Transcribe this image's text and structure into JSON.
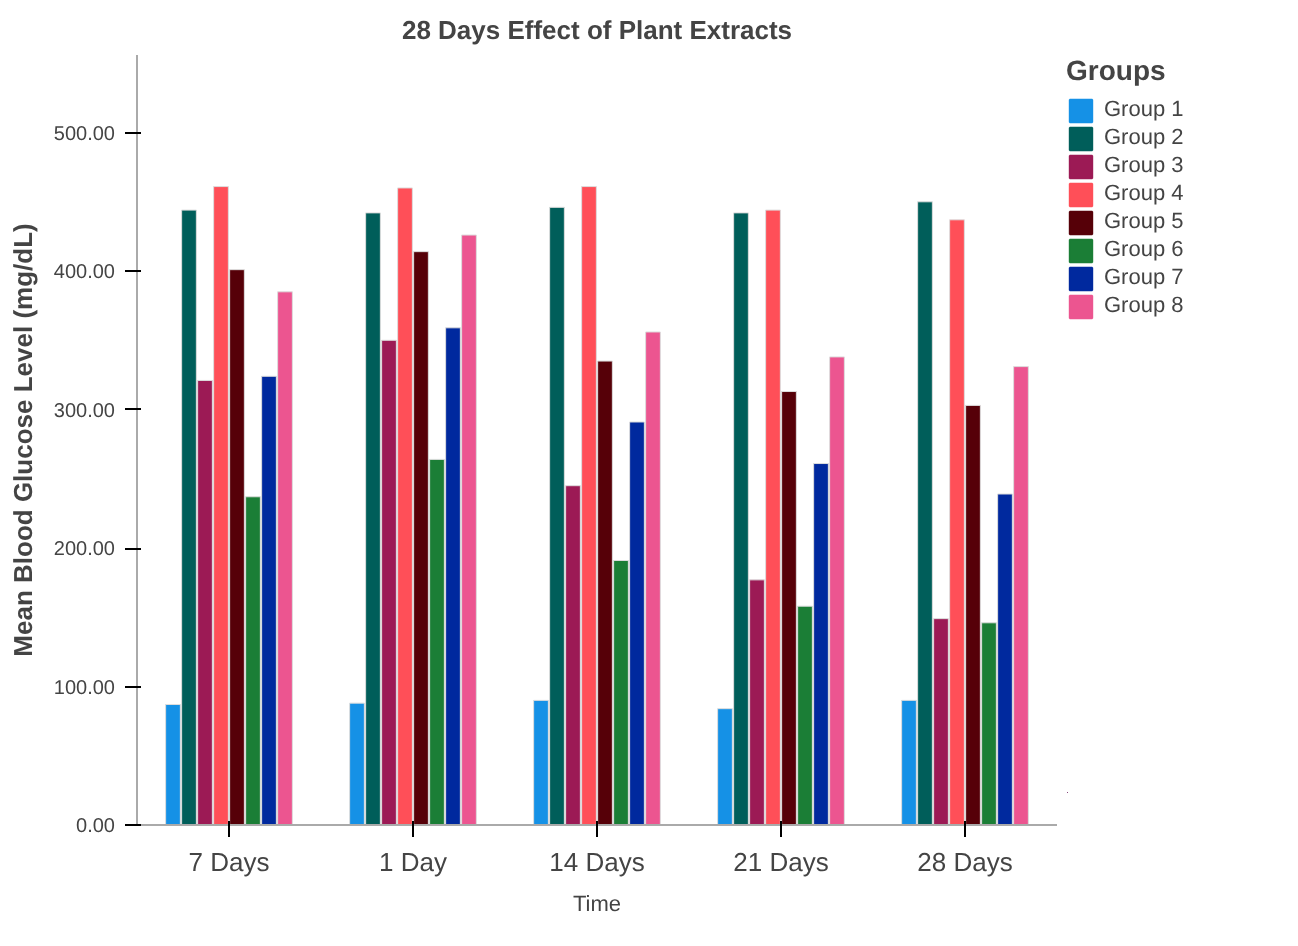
{
  "chart_data": {
    "type": "bar",
    "title": "28 Days Effect of Plant Extracts",
    "xlabel": "Time",
    "ylabel": "Mean Blood Glucose Level (mg/dL)",
    "legend_title": "Groups",
    "legend": "right",
    "categories": [
      "7 Days",
      "1 Day",
      "14 Days",
      "21 Days",
      "28 Days"
    ],
    "ylim": [
      0,
      556
    ],
    "yticks": [
      {
        "value": 0,
        "label": "0.00"
      },
      {
        "value": 100,
        "label": "100.00"
      },
      {
        "value": 200,
        "label": "200.00"
      },
      {
        "value": 300,
        "label": "300.00"
      },
      {
        "value": 400,
        "label": "400.00"
      },
      {
        "value": 500,
        "label": "500.00"
      }
    ],
    "grid": false,
    "series": [
      {
        "name": "Group 1",
        "color": "#1591e6",
        "values": [
          87,
          88,
          90,
          84,
          90
        ]
      },
      {
        "name": "Group 2",
        "color": "#005e5a",
        "values": [
          444,
          442,
          446,
          442,
          450
        ]
      },
      {
        "name": "Group 3",
        "color": "#9c1a55",
        "values": [
          321,
          350,
          245,
          177,
          149
        ]
      },
      {
        "name": "Group 4",
        "color": "#ff4f58",
        "values": [
          461,
          460,
          461,
          444,
          437
        ]
      },
      {
        "name": "Group 5",
        "color": "#560008",
        "values": [
          401,
          414,
          335,
          313,
          303
        ]
      },
      {
        "name": "Group 6",
        "color": "#1b7e36",
        "values": [
          237,
          264,
          191,
          158,
          146
        ]
      },
      {
        "name": "Group 7",
        "color": "#00299e",
        "values": [
          324,
          359,
          291,
          261,
          239
        ]
      },
      {
        "name": "Group 8",
        "color": "#ec5590",
        "values": [
          385,
          426,
          356,
          338,
          331
        ]
      }
    ]
  }
}
